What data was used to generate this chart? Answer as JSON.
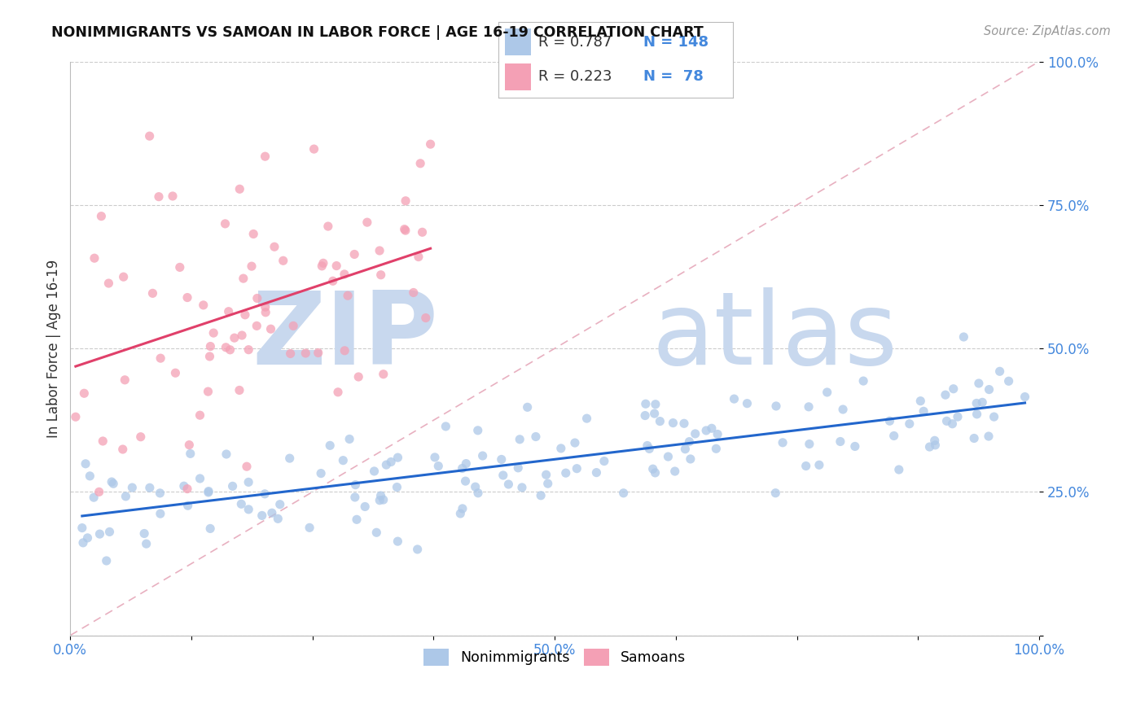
{
  "title": "NONIMMIGRANTS VS SAMOAN IN LABOR FORCE | AGE 16-19 CORRELATION CHART",
  "source": "Source: ZipAtlas.com",
  "ylabel": "In Labor Force | Age 16-19",
  "xlim": [
    0.0,
    1.0
  ],
  "ylim": [
    0.0,
    1.0
  ],
  "blue_R": 0.787,
  "blue_N": 148,
  "pink_R": 0.223,
  "pink_N": 78,
  "blue_color": "#adc8e8",
  "pink_color": "#f4a0b5",
  "blue_line_color": "#2266cc",
  "pink_line_color": "#e0406a",
  "diag_line_color": "#e8b0c0",
  "axis_color": "#4488dd",
  "tick_color": "#333333",
  "grid_color": "#cccccc",
  "watermark_zip_color": "#c8d8ee",
  "watermark_atlas_color": "#c8d8ee",
  "legend_box_color": "#f0f4f8",
  "legend_border_color": "#aaaaaa"
}
